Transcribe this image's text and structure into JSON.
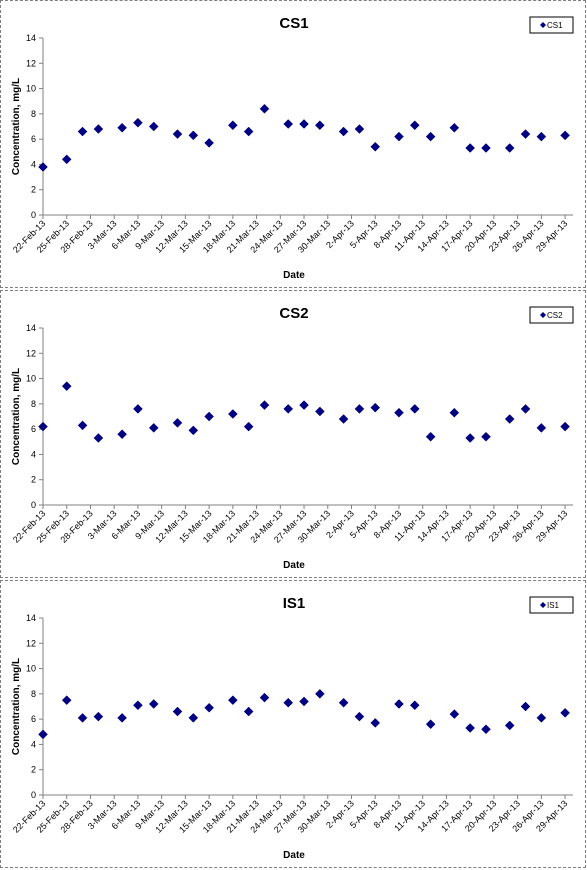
{
  "chart_data": [
    {
      "type": "scatter",
      "title": "CS1",
      "xlabel": "Date",
      "ylabel": "Concentration, mg/L",
      "ylim": [
        0,
        14
      ],
      "yticks": [
        0,
        2,
        4,
        6,
        8,
        10,
        12,
        14
      ],
      "xlim": [
        "22-Feb-13",
        "30-Apr-13"
      ],
      "xticks": [
        "22-Feb-13",
        "25-Feb-13",
        "28-Feb-13",
        "3-Mar-13",
        "6-Mar-13",
        "9-Mar-13",
        "12-Mar-13",
        "15-Mar-13",
        "18-Mar-13",
        "21-Mar-13",
        "24-Mar-13",
        "27-Mar-13",
        "30-Mar-13",
        "2-Apr-13",
        "5-Apr-13",
        "8-Apr-13",
        "11-Apr-13",
        "14-Apr-13",
        "17-Apr-13",
        "20-Apr-13",
        "23-Apr-13",
        "26-Apr-13",
        "29-Apr-13"
      ],
      "grid": false,
      "legend": "top-right",
      "color": "#000080",
      "series": [
        {
          "name": "CS1",
          "x": [
            "22-Feb-13",
            "25-Feb-13",
            "27-Feb-13",
            "1-Mar-13",
            "4-Mar-13",
            "6-Mar-13",
            "8-Mar-13",
            "11-Mar-13",
            "13-Mar-13",
            "15-Mar-13",
            "18-Mar-13",
            "20-Mar-13",
            "25-Mar-13",
            "27-Mar-13",
            "29-Mar-13",
            "1-Apr-13",
            "3-Apr-13",
            "5-Apr-13",
            "8-Apr-13",
            "10-Apr-13",
            "12-Apr-13",
            "15-Apr-13",
            "17-Apr-13",
            "19-Apr-13",
            "22-Apr-13",
            "24-Apr-13",
            "26-Apr-13",
            "29-Apr-13",
            "22-Mar-13"
          ],
          "y": [
            3.8,
            4.4,
            6.6,
            6.8,
            6.9,
            7.3,
            7.0,
            6.4,
            6.3,
            5.7,
            7.1,
            6.6,
            7.2,
            7.2,
            7.1,
            6.6,
            6.8,
            5.4,
            6.2,
            7.1,
            6.2,
            6.9,
            5.3,
            5.3,
            5.3,
            6.4,
            6.2,
            6.3,
            8.4
          ]
        }
      ]
    },
    {
      "type": "scatter",
      "title": "CS2",
      "xlabel": "Date",
      "ylabel": "Concentration, mg/L",
      "ylim": [
        0,
        14
      ],
      "yticks": [
        0,
        2,
        4,
        6,
        8,
        10,
        12,
        14
      ],
      "xlim": [
        "22-Feb-13",
        "30-Apr-13"
      ],
      "xticks": [
        "22-Feb-13",
        "25-Feb-13",
        "28-Feb-13",
        "3-Mar-13",
        "6-Mar-13",
        "9-Mar-13",
        "12-Mar-13",
        "15-Mar-13",
        "18-Mar-13",
        "21-Mar-13",
        "24-Mar-13",
        "27-Mar-13",
        "30-Mar-13",
        "2-Apr-13",
        "5-Apr-13",
        "8-Apr-13",
        "11-Apr-13",
        "14-Apr-13",
        "17-Apr-13",
        "20-Apr-13",
        "23-Apr-13",
        "26-Apr-13",
        "29-Apr-13"
      ],
      "grid": false,
      "legend": "top-right",
      "color": "#000080",
      "series": [
        {
          "name": "CS2",
          "x": [
            "22-Feb-13",
            "25-Feb-13",
            "27-Feb-13",
            "1-Mar-13",
            "4-Mar-13",
            "6-Mar-13",
            "8-Mar-13",
            "11-Mar-13",
            "13-Mar-13",
            "15-Mar-13",
            "18-Mar-13",
            "20-Mar-13",
            "22-Mar-13",
            "25-Mar-13",
            "27-Mar-13",
            "29-Mar-13",
            "1-Apr-13",
            "3-Apr-13",
            "5-Apr-13",
            "8-Apr-13",
            "10-Apr-13",
            "12-Apr-13",
            "15-Apr-13",
            "17-Apr-13",
            "19-Apr-13",
            "22-Apr-13",
            "24-Apr-13",
            "26-Apr-13",
            "29-Apr-13"
          ],
          "y": [
            6.2,
            9.4,
            6.3,
            5.3,
            5.6,
            7.6,
            6.1,
            6.5,
            5.9,
            7.0,
            7.2,
            6.2,
            7.9,
            7.6,
            7.9,
            7.4,
            6.8,
            7.6,
            7.7,
            7.3,
            7.6,
            5.4,
            7.3,
            5.3,
            5.4,
            6.8,
            7.6,
            6.1,
            6.2
          ]
        }
      ]
    },
    {
      "type": "scatter",
      "title": "IS1",
      "xlabel": "Date",
      "ylabel": "Concentration, mg/L",
      "ylim": [
        0,
        14
      ],
      "yticks": [
        0,
        2,
        4,
        6,
        8,
        10,
        12,
        14
      ],
      "xlim": [
        "22-Feb-13",
        "30-Apr-13"
      ],
      "xticks": [
        "22-Feb-13",
        "25-Feb-13",
        "28-Feb-13",
        "3-Mar-13",
        "6-Mar-13",
        "9-Mar-13",
        "12-Mar-13",
        "15-Mar-13",
        "18-Mar-13",
        "21-Mar-13",
        "24-Mar-13",
        "27-Mar-13",
        "30-Mar-13",
        "2-Apr-13",
        "5-Apr-13",
        "8-Apr-13",
        "11-Apr-13",
        "14-Apr-13",
        "17-Apr-13",
        "20-Apr-13",
        "23-Apr-13",
        "26-Apr-13",
        "29-Apr-13"
      ],
      "grid": false,
      "legend": "top-right",
      "color": "#000080",
      "series": [
        {
          "name": "IS1",
          "x": [
            "22-Feb-13",
            "25-Feb-13",
            "27-Feb-13",
            "1-Mar-13",
            "4-Mar-13",
            "6-Mar-13",
            "8-Mar-13",
            "11-Mar-13",
            "13-Mar-13",
            "15-Mar-13",
            "18-Mar-13",
            "20-Mar-13",
            "22-Mar-13",
            "25-Mar-13",
            "27-Mar-13",
            "29-Mar-13",
            "1-Apr-13",
            "3-Apr-13",
            "5-Apr-13",
            "8-Apr-13",
            "10-Apr-13",
            "12-Apr-13",
            "15-Apr-13",
            "17-Apr-13",
            "19-Apr-13",
            "22-Apr-13",
            "24-Apr-13",
            "26-Apr-13",
            "29-Apr-13"
          ],
          "y": [
            4.8,
            7.5,
            6.1,
            6.2,
            6.1,
            7.1,
            7.2,
            6.6,
            6.1,
            6.9,
            7.5,
            6.6,
            7.7,
            7.3,
            7.4,
            8.0,
            7.3,
            6.2,
            5.7,
            7.2,
            7.1,
            5.6,
            6.4,
            5.3,
            5.2,
            5.5,
            7.0,
            6.1,
            6.5
          ]
        }
      ]
    }
  ]
}
